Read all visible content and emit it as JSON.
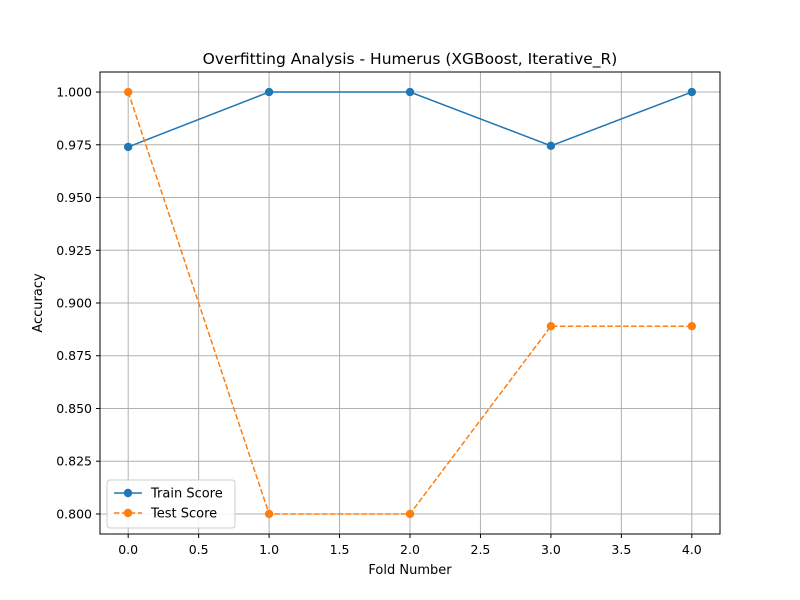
{
  "chart_data": {
    "type": "line",
    "title": "Overfitting Analysis - Humerus (XGBoost, Iterative_R)",
    "xlabel": "Fold Number",
    "ylabel": "Accuracy",
    "xlim": [
      -0.2,
      4.2
    ],
    "ylim": [
      0.7905,
      1.0095
    ],
    "xticks": [
      0.0,
      0.5,
      1.0,
      1.5,
      2.0,
      2.5,
      3.0,
      3.5,
      4.0
    ],
    "xtick_labels": [
      "0.0",
      "0.5",
      "1.0",
      "1.5",
      "2.0",
      "2.5",
      "3.0",
      "3.5",
      "4.0"
    ],
    "yticks": [
      0.8,
      0.825,
      0.85,
      0.875,
      0.9,
      0.925,
      0.95,
      0.975,
      1.0
    ],
    "ytick_labels": [
      "0.800",
      "0.825",
      "0.850",
      "0.875",
      "0.900",
      "0.925",
      "0.950",
      "0.975",
      "1.000"
    ],
    "grid": true,
    "legend_position": "lower-left",
    "series": [
      {
        "name": "Train Score",
        "x": [
          0,
          1,
          2,
          3,
          4
        ],
        "y": [
          0.974,
          1.0,
          1.0,
          0.9745,
          1.0
        ],
        "color": "#1f77b4",
        "line_style": "solid",
        "marker": "circle"
      },
      {
        "name": "Test Score",
        "x": [
          0,
          1,
          2,
          3,
          4
        ],
        "y": [
          1.0,
          0.8,
          0.8,
          0.889,
          0.889
        ],
        "color": "#ff7f0e",
        "line_style": "dashed",
        "marker": "circle"
      }
    ]
  }
}
